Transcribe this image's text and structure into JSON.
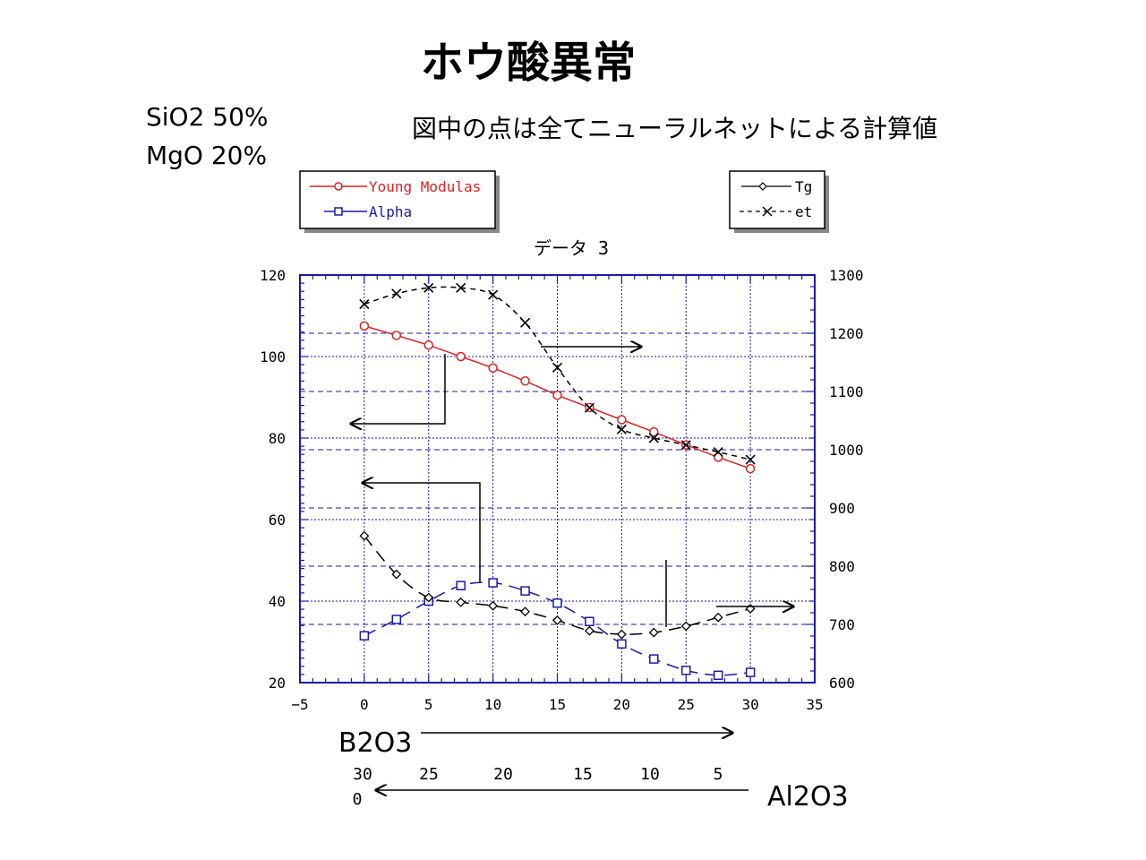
{
  "title": "ホウ酸異常",
  "composition": [
    "SiO2  50%",
    "MgO  20%"
  ],
  "note": "図中の点は全てニューラルネットによる計算値",
  "chart_data": {
    "type": "line",
    "title": "データ 3",
    "x": [
      0,
      2.5,
      5,
      7.5,
      10,
      12.5,
      15,
      17.5,
      20,
      22.5,
      25,
      27.5,
      30
    ],
    "xlim": [
      -5,
      35
    ],
    "xticks": [
      -5,
      0,
      5,
      10,
      15,
      20,
      25,
      30,
      35
    ],
    "ylim_left": [
      20,
      120
    ],
    "yticks_left": [
      20,
      40,
      60,
      80,
      100,
      120
    ],
    "ylim_right": [
      600,
      1300
    ],
    "yticks_right": [
      600,
      700,
      800,
      900,
      1000,
      1100,
      1200,
      1300
    ],
    "grid": "dotted",
    "legend_left": [
      "Young Modulas",
      "Alpha"
    ],
    "legend_right": [
      "Tg",
      "et"
    ],
    "series": [
      {
        "name": "Young Modulas",
        "axis": "left",
        "color": "#dd2222",
        "marker": "circle",
        "dash": "solid",
        "values": [
          107.5,
          105.2,
          102.8,
          100.0,
          97.2,
          94.0,
          90.5,
          87.5,
          84.5,
          81.5,
          78.3,
          75.3,
          72.5
        ]
      },
      {
        "name": "Alpha",
        "axis": "left",
        "color": "#1a1aaa",
        "marker": "square",
        "dash": "long",
        "values": [
          31.5,
          35.5,
          40.0,
          43.8,
          44.5,
          42.5,
          39.5,
          35.0,
          29.5,
          25.8,
          23.0,
          21.8,
          22.5
        ]
      },
      {
        "name": "Tg",
        "axis": "right",
        "color": "#000000",
        "marker": "diamond",
        "dash": "long",
        "values": [
          852,
          786,
          746,
          738,
          732,
          722,
          707,
          689,
          683,
          686,
          697,
          712,
          727
        ]
      },
      {
        "name": "et",
        "axis": "right",
        "color": "#000000",
        "marker": "x",
        "dash": "short",
        "values": [
          1250,
          1268,
          1278,
          1278,
          1266,
          1218,
          1141,
          1072,
          1035,
          1020,
          1008,
          996,
          983
        ]
      }
    ]
  },
  "bottom_axis": {
    "b2o3_label": "B2O3",
    "al2o3_label": "Al2O3",
    "al2o3_ticks": [
      "30",
      "25",
      "20",
      "15",
      "10",
      "5"
    ],
    "al2o3_zero": "0"
  }
}
